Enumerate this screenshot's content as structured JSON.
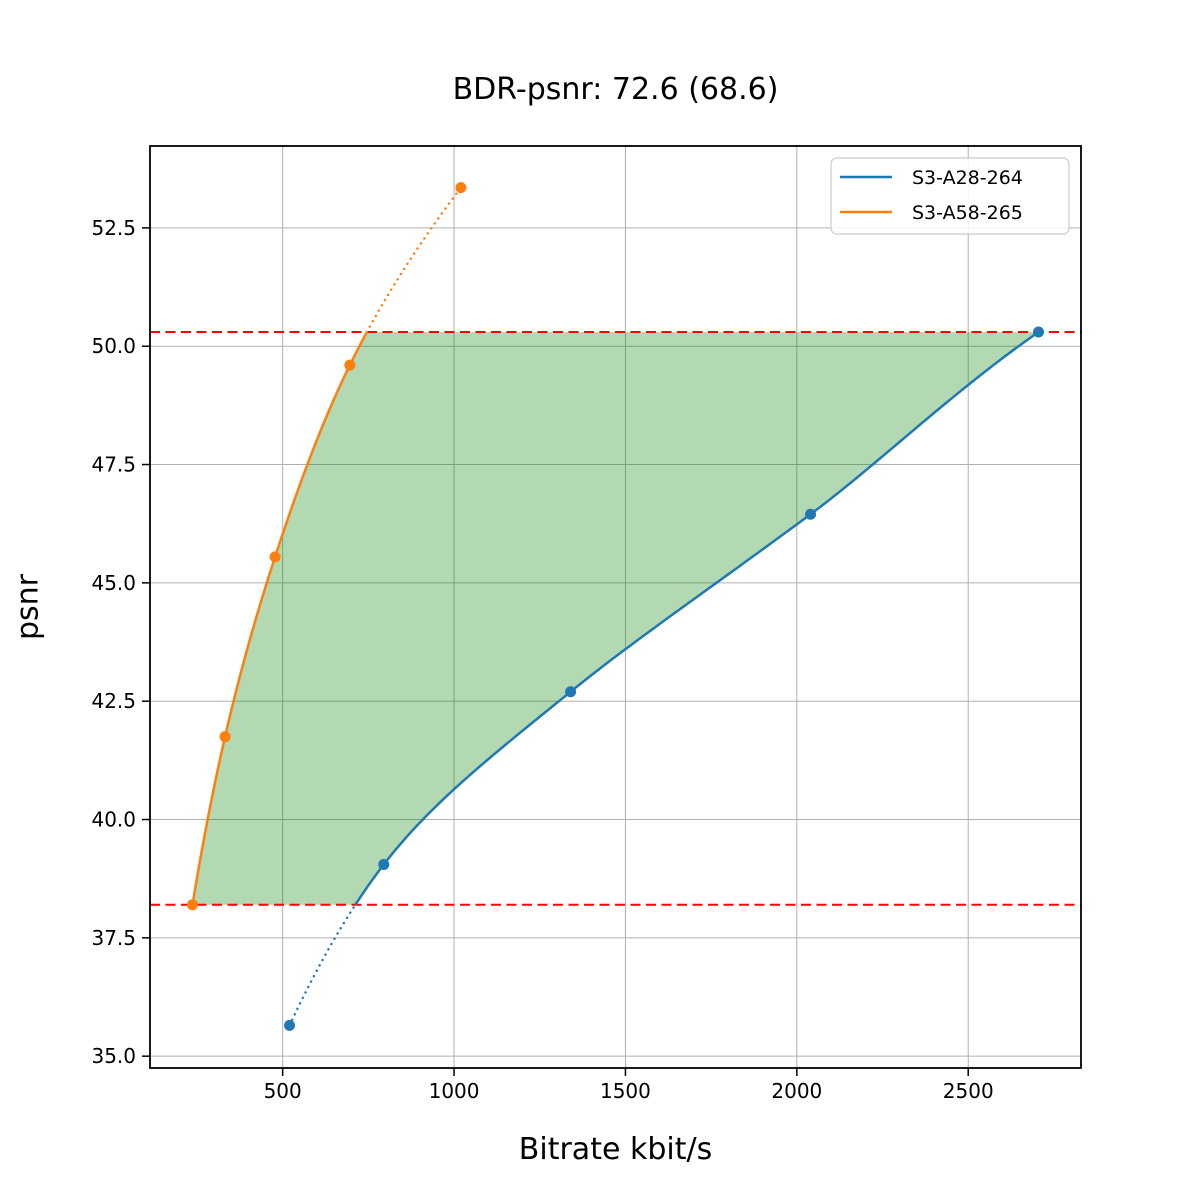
{
  "figure": {
    "title": "BDR-psnr: 72.6 (68.6)",
    "xlabel": "Bitrate kbit/s",
    "ylabel": "psnr"
  },
  "chart_data": {
    "type": "line",
    "title": "BDR-psnr: 72.6 (68.6)",
    "xlabel": "Bitrate kbit/s",
    "ylabel": "psnr",
    "xlim": [
      113,
      2829
    ],
    "ylim": [
      34.75,
      54.23
    ],
    "xticks": [
      500,
      1000,
      1500,
      2000,
      2500
    ],
    "yticks": [
      35.0,
      37.5,
      40.0,
      42.5,
      45.0,
      47.5,
      50.0,
      52.5
    ],
    "grid": true,
    "legend_position": "upper right",
    "series": [
      {
        "name": "S3-A28-264",
        "color": "#1f77b4",
        "marker": "circle",
        "interpolation": "pchip-logx",
        "points": [
          [
            520,
            35.65
          ],
          [
            795,
            39.05
          ],
          [
            1340,
            42.7
          ],
          [
            2040,
            46.45
          ],
          [
            2705,
            50.3
          ]
        ]
      },
      {
        "name": "S3-A58-265",
        "color": "#ff7f0e",
        "marker": "circle",
        "interpolation": "pchip-logx",
        "points": [
          [
            237,
            38.2
          ],
          [
            332,
            41.75
          ],
          [
            478,
            45.55
          ],
          [
            696,
            49.6
          ],
          [
            1020,
            53.35
          ]
        ]
      }
    ],
    "hlines": [
      {
        "y": 50.3,
        "color": "#ff0000",
        "style": "dashed"
      },
      {
        "y": 38.2,
        "color": "#ff0000",
        "style": "dashed"
      }
    ],
    "shaded_region": {
      "description": "BD integration area between the two curves clipped to psnr range 38.2-50.3",
      "fill": "rgba(0,128,0,0.3)",
      "y_range": [
        38.2,
        50.3
      ]
    },
    "colors": {
      "grid": "#b0b0b0",
      "spine": "#000000",
      "legend_border": "#cccccc",
      "legend_bg": "rgba(255,255,255,0.85)"
    }
  }
}
